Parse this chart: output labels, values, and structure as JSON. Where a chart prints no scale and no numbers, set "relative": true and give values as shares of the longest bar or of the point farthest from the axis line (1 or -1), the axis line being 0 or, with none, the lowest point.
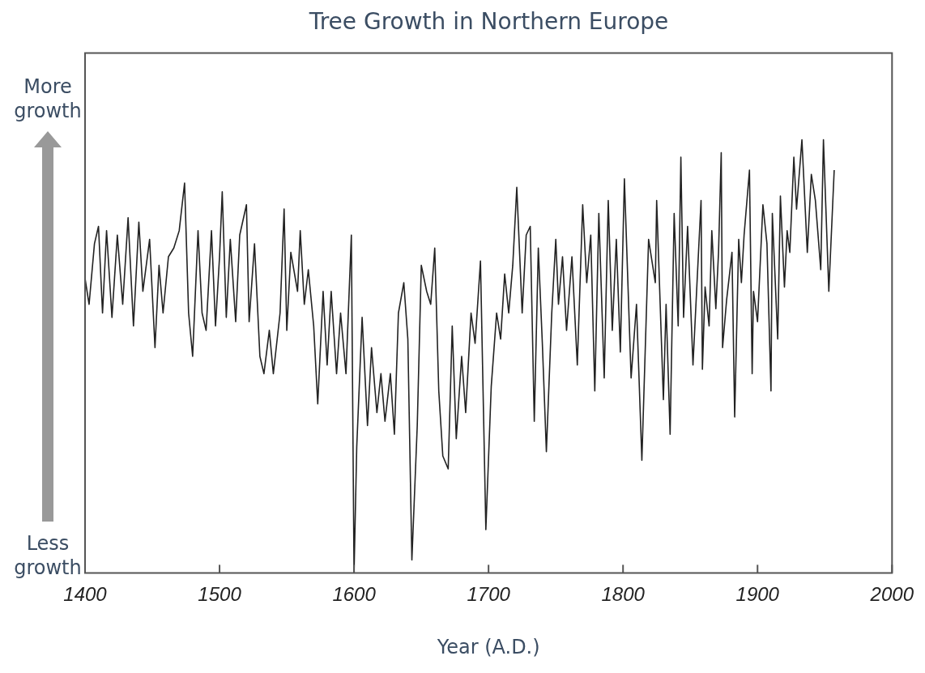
{
  "chart_data": {
    "type": "line",
    "title": "Tree Growth in Northern Europe",
    "xlabel": "Year (A.D.)",
    "relative": true,
    "grid": false,
    "legend": false,
    "marker": "none",
    "line_style": "solid",
    "annotations": [
      "More growth",
      "Less growth"
    ],
    "xlim": [
      1400,
      2000
    ],
    "xticks": [
      1400,
      1500,
      1600,
      1700,
      1800,
      1900,
      2000
    ],
    "series": [
      {
        "color": "#222222",
        "x": [
          1400,
          1403,
          1407,
          1410,
          1413,
          1416,
          1420,
          1424,
          1428,
          1432,
          1436,
          1440,
          1443,
          1448,
          1452,
          1455,
          1458,
          1462,
          1466,
          1470,
          1474,
          1477,
          1480,
          1484,
          1487,
          1490,
          1494,
          1497,
          1500,
          1502,
          1505,
          1508,
          1512,
          1515,
          1520,
          1522,
          1526,
          1530,
          1533,
          1537,
          1540,
          1545,
          1548,
          1550,
          1553,
          1558,
          1560,
          1563,
          1566,
          1570,
          1573,
          1577,
          1580,
          1583,
          1587,
          1590,
          1594,
          1598,
          1600,
          1602,
          1606,
          1610,
          1613,
          1617,
          1620,
          1623,
          1627,
          1630,
          1633,
          1637,
          1640,
          1643,
          1647,
          1650,
          1654,
          1657,
          1660,
          1663,
          1666,
          1670,
          1673,
          1676,
          1680,
          1683,
          1687,
          1690,
          1694,
          1698,
          1702,
          1706,
          1709,
          1712,
          1715,
          1718,
          1721,
          1725,
          1728,
          1731,
          1734,
          1737,
          1740,
          1743,
          1747,
          1750,
          1752,
          1755,
          1758,
          1762,
          1766,
          1770,
          1773,
          1776,
          1779,
          1782,
          1786,
          1789,
          1792,
          1795,
          1798,
          1801,
          1806,
          1810,
          1814,
          1819,
          1824,
          1825,
          1830,
          1832,
          1835,
          1838,
          1841,
          1843,
          1845,
          1848,
          1852,
          1858,
          1859,
          1861,
          1864,
          1866,
          1869,
          1871,
          1873,
          1874,
          1877,
          1881,
          1883,
          1886,
          1888,
          1890,
          1894,
          1896,
          1897,
          1900,
          1904,
          1907,
          1910,
          1911,
          1915,
          1917,
          1920,
          1922,
          1924,
          1927,
          1929,
          1933,
          1937,
          1940,
          1943,
          1947,
          1949,
          1953,
          1957
        ],
        "values": [
          0.68,
          0.62,
          0.76,
          0.8,
          0.6,
          0.79,
          0.59,
          0.78,
          0.62,
          0.82,
          0.57,
          0.81,
          0.65,
          0.77,
          0.52,
          0.71,
          0.6,
          0.73,
          0.75,
          0.79,
          0.9,
          0.6,
          0.5,
          0.79,
          0.6,
          0.56,
          0.79,
          0.57,
          0.73,
          0.88,
          0.59,
          0.77,
          0.58,
          0.78,
          0.85,
          0.58,
          0.76,
          0.5,
          0.46,
          0.56,
          0.46,
          0.6,
          0.84,
          0.56,
          0.74,
          0.65,
          0.79,
          0.62,
          0.7,
          0.57,
          0.39,
          0.65,
          0.48,
          0.65,
          0.46,
          0.6,
          0.46,
          0.78,
          0,
          0.29,
          0.59,
          0.34,
          0.52,
          0.37,
          0.46,
          0.35,
          0.46,
          0.32,
          0.6,
          0.67,
          0.54,
          0.03,
          0.34,
          0.71,
          0.65,
          0.62,
          0.75,
          0.42,
          0.27,
          0.24,
          0.57,
          0.31,
          0.5,
          0.37,
          0.6,
          0.53,
          0.72,
          0.1,
          0.43,
          0.6,
          0.54,
          0.69,
          0.6,
          0.71,
          0.89,
          0.6,
          0.78,
          0.8,
          0.35,
          0.75,
          0.53,
          0.28,
          0.6,
          0.77,
          0.62,
          0.73,
          0.56,
          0.73,
          0.48,
          0.85,
          0.67,
          0.78,
          0.42,
          0.83,
          0.45,
          0.86,
          0.56,
          0.77,
          0.51,
          0.91,
          0.45,
          0.62,
          0.26,
          0.77,
          0.67,
          0.86,
          0.4,
          0.62,
          0.32,
          0.83,
          0.57,
          0.96,
          0.59,
          0.8,
          0.48,
          0.86,
          0.47,
          0.66,
          0.57,
          0.79,
          0.61,
          0.74,
          0.97,
          0.52,
          0.63,
          0.74,
          0.36,
          0.77,
          0.67,
          0.78,
          0.93,
          0.46,
          0.65,
          0.58,
          0.85,
          0.76,
          0.42,
          0.83,
          0.54,
          0.87,
          0.66,
          0.79,
          0.74,
          0.96,
          0.84,
          1,
          0.74,
          0.92,
          0.86,
          0.7,
          1,
          0.65,
          0.93
        ]
      }
    ]
  }
}
